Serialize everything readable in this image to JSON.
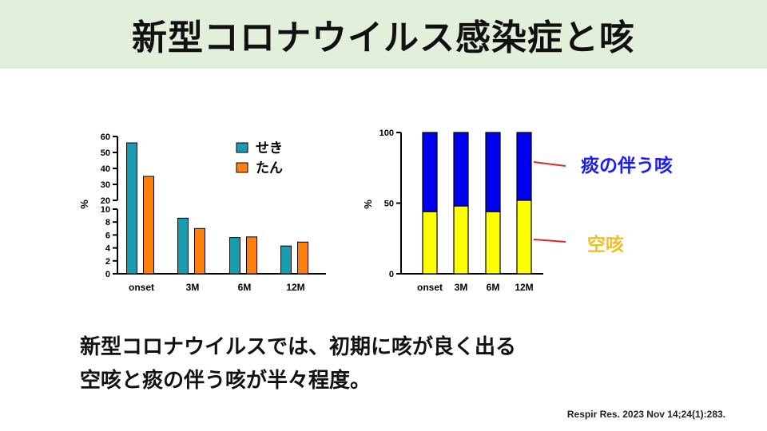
{
  "title": "新型コロナウイルス感染症と咳",
  "caption": {
    "line1": "新型コロナウイルスでは、初期に咳が良く出る",
    "line2": "空咳と痰の伴う咳が半々程度。"
  },
  "citation": "Respir Res. 2023 Nov 14;24(1):283.",
  "colors": {
    "title_bg": "#e2efda",
    "seki": "#1a9bb0",
    "tan": "#ff7f0e",
    "blue_seg": "#0000ee",
    "yellow_seg": "#ffff00",
    "pointer": "#e0282f",
    "anno_blue": "#1a1aff",
    "anno_yellow": "#f0c020"
  },
  "chart_data": [
    {
      "type": "bar",
      "ylabel": "%",
      "categories": [
        "onset",
        "3M",
        "6M",
        "12M"
      ],
      "y_axis_break": {
        "lower": [
          0,
          10
        ],
        "upper": [
          20,
          60
        ]
      },
      "lower_ticks": [
        0,
        2,
        4,
        6,
        8,
        10
      ],
      "upper_ticks": [
        20,
        30,
        40,
        50,
        60
      ],
      "legend": {
        "position": "top-right"
      },
      "series": [
        {
          "name": "せき",
          "values": [
            56,
            8.6,
            5.6,
            4.3
          ]
        },
        {
          "name": "たん",
          "values": [
            35,
            7.0,
            5.7,
            4.9
          ]
        }
      ]
    },
    {
      "type": "bar",
      "stacked": true,
      "ylabel": "%",
      "categories": [
        "onset",
        "3M",
        "6M",
        "12M"
      ],
      "ylim": [
        0,
        100
      ],
      "yticks": [
        0,
        50,
        100
      ],
      "series": [
        {
          "name": "空咳",
          "values": [
            44,
            48,
            44,
            52
          ]
        },
        {
          "name": "痰の伴う咳",
          "values": [
            56,
            52,
            56,
            48
          ]
        }
      ]
    }
  ]
}
